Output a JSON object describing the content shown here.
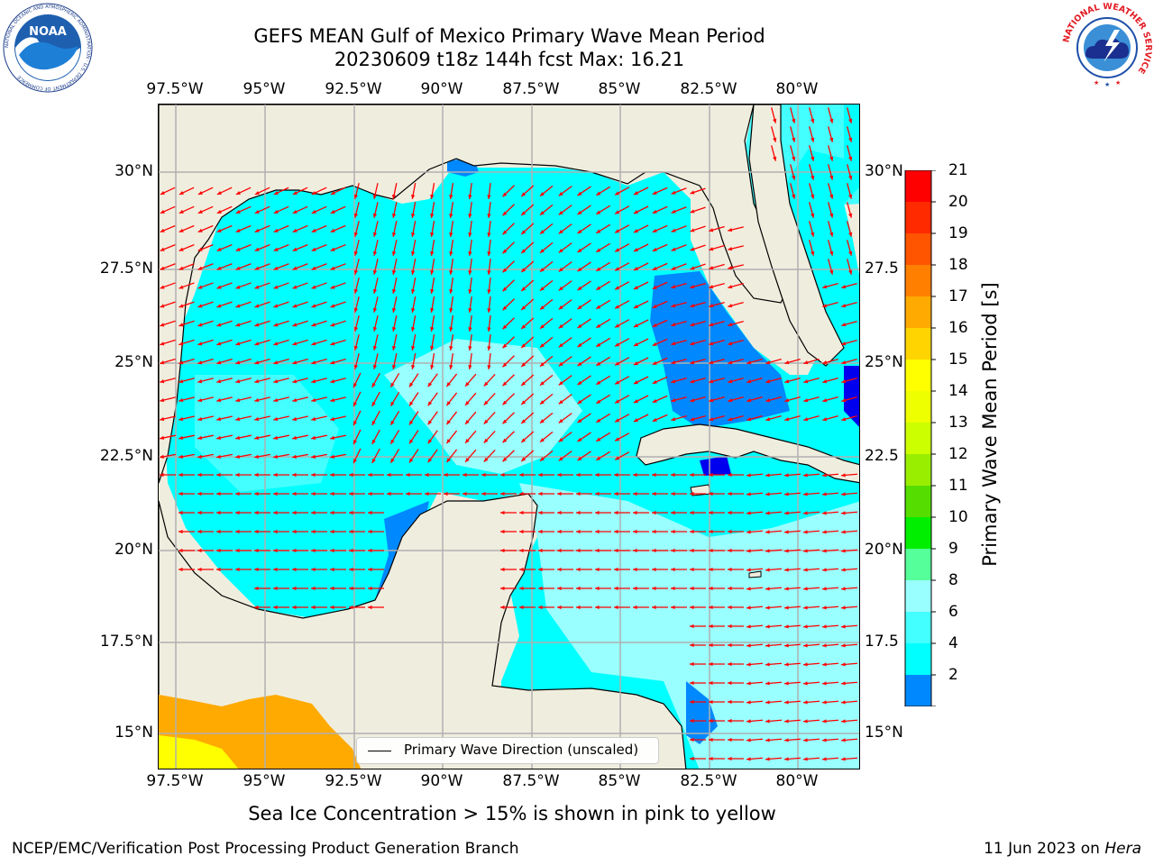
{
  "title_line1": "GEFS MEAN Gulf of Mexico Primary Wave Mean Period",
  "title_line2": "20230609 t18z 144h fcst   Max: 16.21",
  "logos": {
    "noaa_text": "NOAA",
    "noaa_ring_text": "NATIONAL OCEANIC AND ATMOSPHERIC ADMINISTRATION · U.S. DEPARTMENT OF COMMERCE",
    "nws_ring_text": "NATIONAL WEATHER SERVICE"
  },
  "map": {
    "lon_ticks": [
      "97.5°W",
      "95°W",
      "92.5°W",
      "90°W",
      "87.5°W",
      "85°W",
      "82.5°W",
      "80°W"
    ],
    "lat_ticks_left": [
      "30°N",
      "27.5°N",
      "25°N",
      "22.5°N",
      "20°N",
      "17.5°N",
      "15°N"
    ],
    "lat_ticks_right": [
      "30°N",
      "27.5",
      "25°N",
      "22.5",
      "20°N",
      "17.5",
      "15°N"
    ],
    "lon_range": [
      -98,
      -78.3
    ],
    "lat_range": [
      14,
      31.7
    ],
    "land_color": "#efedde",
    "grid_color": "#b0b0b0",
    "arrow_color": "#ff0000",
    "legend_label": "Primary Wave Direction (unscaled)"
  },
  "colorbar": {
    "title": "Primary Wave Mean Period [s]",
    "labels": [
      "21",
      "20",
      "19",
      "18",
      "17",
      "16",
      "15",
      "14",
      "13",
      "12",
      "11",
      "10",
      "9",
      "8",
      "6",
      "4",
      "2"
    ],
    "colors": [
      "#ff0000",
      "#ff2a00",
      "#ff5500",
      "#ff8000",
      "#ffaa00",
      "#ffd400",
      "#ffff00",
      "#eeff00",
      "#ccff00",
      "#99ee00",
      "#55dd00",
      "#00ee00",
      "#55ff99",
      "#99ffff",
      "#44ffff",
      "#00ffff",
      "#0088ff"
    ],
    "under_color": "#0000ee"
  },
  "subtitle": "Sea Ice Concentration > 15% is shown in pink to yellow",
  "footer_left": "NCEP/EMC/Verification Post Processing Product Generation Branch",
  "footer_right_date": "11 Jun 2023 on ",
  "footer_right_host": "Hera"
}
